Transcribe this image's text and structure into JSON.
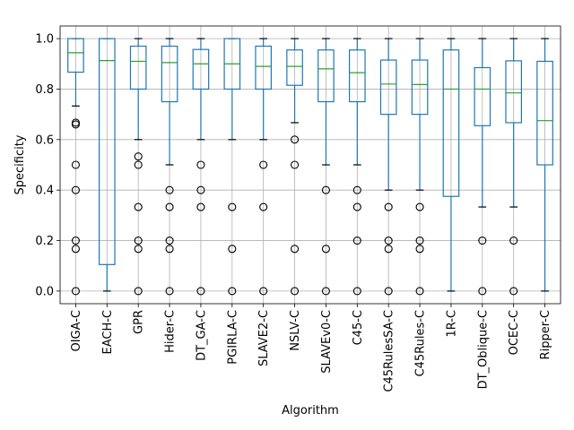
{
  "chart_data": {
    "type": "boxplot",
    "xlabel": "Algorithm",
    "ylabel": "Specificity",
    "ylim": [
      -0.05,
      1.05
    ],
    "yticks": [
      0.0,
      0.2,
      0.4,
      0.6,
      0.8,
      1.0
    ],
    "ytick_labels": [
      "0.0",
      "0.2",
      "0.4",
      "0.6",
      "0.8",
      "1.0"
    ],
    "grid": true,
    "colors": {
      "box": "#1f77b4",
      "median": "#2ca02c",
      "flier": "#000000",
      "grid": "#b0b0b0"
    },
    "categories": [
      "OIGA-C",
      "EACH-C",
      "GPR",
      "Hider-C",
      "DT_GA-C",
      "PGIRLA-C",
      "SLAVE2-C",
      "NSLV-C",
      "SLAVEv0-C",
      "C45-C",
      "C45RulesSA-C",
      "C45Rules-C",
      "1R-C",
      "DT_Oblique-C",
      "OCEC-C",
      "Ripper-C"
    ],
    "boxes": [
      {
        "name": "OIGA-C",
        "whisker_low": 0.733,
        "q1": 0.867,
        "median": 0.944,
        "q3": 1.0,
        "whisker_high": 1.0,
        "fliers": [
          0.667,
          0.66,
          0.5,
          0.4,
          0.2,
          0.167,
          0.0
        ]
      },
      {
        "name": "EACH-C",
        "whisker_low": 0.0,
        "q1": 0.105,
        "median": 0.913,
        "q3": 1.0,
        "whisker_high": 1.0,
        "fliers": []
      },
      {
        "name": "GPR",
        "whisker_low": 0.6,
        "q1": 0.8,
        "median": 0.91,
        "q3": 0.97,
        "whisker_high": 1.0,
        "fliers": [
          0.533,
          0.5,
          0.333,
          0.2,
          0.167,
          0.0
        ]
      },
      {
        "name": "Hider-C",
        "whisker_low": 0.5,
        "q1": 0.75,
        "median": 0.905,
        "q3": 0.97,
        "whisker_high": 1.0,
        "fliers": [
          0.4,
          0.333,
          0.2,
          0.167,
          0.0
        ]
      },
      {
        "name": "DT_GA-C",
        "whisker_low": 0.6,
        "q1": 0.8,
        "median": 0.9,
        "q3": 0.957,
        "whisker_high": 1.0,
        "fliers": [
          0.5,
          0.4,
          0.333,
          0.0
        ]
      },
      {
        "name": "PGIRLA-C",
        "whisker_low": 0.6,
        "q1": 0.8,
        "median": 0.9,
        "q3": 1.0,
        "whisker_high": 1.0,
        "fliers": [
          0.333,
          0.167,
          0.0
        ]
      },
      {
        "name": "SLAVE2-C",
        "whisker_low": 0.6,
        "q1": 0.8,
        "median": 0.89,
        "q3": 0.97,
        "whisker_high": 1.0,
        "fliers": [
          0.5,
          0.333,
          0.0
        ]
      },
      {
        "name": "NSLV-C",
        "whisker_low": 0.667,
        "q1": 0.815,
        "median": 0.89,
        "q3": 0.955,
        "whisker_high": 1.0,
        "fliers": [
          0.6,
          0.5,
          0.167,
          0.0
        ]
      },
      {
        "name": "SLAVEv0-C",
        "whisker_low": 0.5,
        "q1": 0.75,
        "median": 0.88,
        "q3": 0.955,
        "whisker_high": 1.0,
        "fliers": [
          0.4,
          0.167,
          0.0
        ]
      },
      {
        "name": "C45-C",
        "whisker_low": 0.5,
        "q1": 0.75,
        "median": 0.865,
        "q3": 0.955,
        "whisker_high": 1.0,
        "fliers": [
          0.4,
          0.333,
          0.2,
          0.0
        ]
      },
      {
        "name": "C45RulesSA-C",
        "whisker_low": 0.4,
        "q1": 0.7,
        "median": 0.82,
        "q3": 0.915,
        "whisker_high": 1.0,
        "fliers": [
          0.333,
          0.2,
          0.167,
          0.0
        ]
      },
      {
        "name": "C45Rules-C",
        "whisker_low": 0.4,
        "q1": 0.7,
        "median": 0.818,
        "q3": 0.915,
        "whisker_high": 1.0,
        "fliers": [
          0.333,
          0.2,
          0.167,
          0.0
        ]
      },
      {
        "name": "1R-C",
        "whisker_low": 0.0,
        "q1": 0.375,
        "median": 0.8,
        "q3": 0.955,
        "whisker_high": 1.0,
        "fliers": []
      },
      {
        "name": "DT_Oblique-C",
        "whisker_low": 0.333,
        "q1": 0.655,
        "median": 0.8,
        "q3": 0.885,
        "whisker_high": 1.0,
        "fliers": [
          0.2,
          0.0
        ]
      },
      {
        "name": "OCEC-C",
        "whisker_low": 0.333,
        "q1": 0.667,
        "median": 0.785,
        "q3": 0.912,
        "whisker_high": 1.0,
        "fliers": [
          0.2,
          0.0
        ]
      },
      {
        "name": "Ripper-C",
        "whisker_low": 0.0,
        "q1": 0.5,
        "median": 0.675,
        "q3": 0.91,
        "whisker_high": 1.0,
        "fliers": []
      }
    ]
  }
}
